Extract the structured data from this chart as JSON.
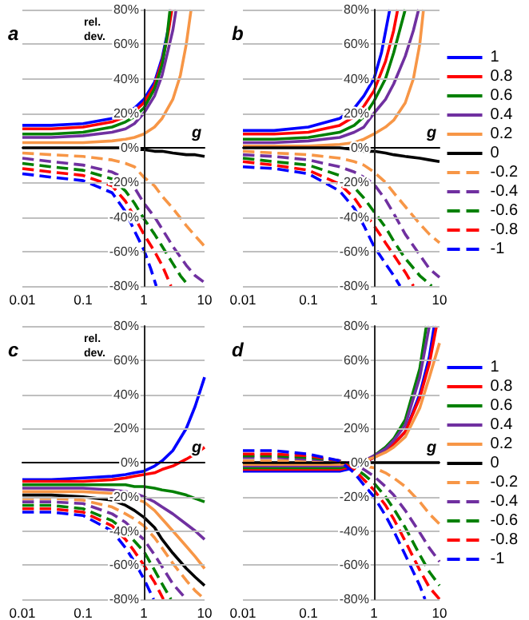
{
  "chart_data": [
    {
      "type": "line",
      "title": "a",
      "xlabel": "g",
      "ylabel": "rel.\ndev.",
      "xlim": [
        0.01,
        10
      ],
      "xticks": [
        0.01,
        0.1,
        1,
        10
      ],
      "ylim": [
        -80,
        80
      ],
      "yticks": [
        {
          "value": -80,
          "label": "-80%"
        },
        {
          "value": -60,
          "label": "-60%"
        },
        {
          "value": -40,
          "label": "-40%"
        },
        {
          "value": -20,
          "label": "-20%"
        },
        {
          "value": 0,
          "label": "0%"
        },
        {
          "value": 20,
          "label": "20%"
        },
        {
          "value": 40,
          "label": "40%"
        },
        {
          "value": 60,
          "label": "60%"
        },
        {
          "value": 80,
          "label": "80%"
        }
      ],
      "log": "x",
      "grid": "y",
      "legend": false,
      "marker": "none",
      "x": [
        0.01,
        0.03,
        0.1,
        0.3,
        0.5,
        0.7,
        1,
        1.5,
        2,
        3,
        5,
        7,
        10
      ],
      "series": [
        {
          "color": "#0000ff",
          "line_style": "solid",
          "x": [
            0.01,
            0.03,
            0.1,
            0.3,
            0.5,
            0.7,
            1,
            1.5,
            2,
            2.5,
            2.8
          ],
          "values": [
            13,
            13,
            14,
            17,
            20,
            23,
            28,
            38,
            52,
            68,
            80
          ]
        },
        {
          "color": "#ff0000",
          "line_style": "solid",
          "x": [
            0.01,
            0.03,
            0.1,
            0.3,
            0.5,
            0.7,
            1,
            1.5,
            2,
            2.5,
            2.9
          ],
          "values": [
            11,
            11,
            12,
            15,
            18,
            21,
            26,
            36,
            50,
            66,
            80
          ]
        },
        {
          "color": "#008000",
          "line_style": "solid",
          "x": [
            0.01,
            0.03,
            0.1,
            0.3,
            0.5,
            0.7,
            1,
            1.5,
            2,
            2.4,
            2.7
          ],
          "values": [
            8,
            8,
            9,
            12,
            15,
            18,
            23,
            34,
            48,
            64,
            80
          ]
        },
        {
          "color": "#7030a0",
          "line_style": "solid",
          "x": [
            0.01,
            0.03,
            0.1,
            0.3,
            0.5,
            0.7,
            1,
            1.5,
            2,
            3,
            3.4
          ],
          "values": [
            6,
            6,
            7,
            9,
            11,
            14,
            20,
            30,
            42,
            68,
            80
          ]
        },
        {
          "color": "#f79646",
          "line_style": "solid",
          "x": [
            0.01,
            0.03,
            0.1,
            0.3,
            0.5,
            0.7,
            1,
            1.5,
            2,
            3,
            4,
            5,
            6
          ],
          "values": [
            3,
            3,
            3,
            4,
            5,
            6,
            8,
            12,
            17,
            28,
            42,
            60,
            80
          ]
        },
        {
          "color": "#000000",
          "line_style": "solid",
          "values": [
            0,
            0,
            0,
            0,
            0,
            -1,
            -1,
            -2,
            -2,
            -3,
            -4,
            -4,
            -5
          ]
        },
        {
          "color": "#f79646",
          "line_style": "dashed",
          "values": [
            -3,
            -4,
            -5,
            -7,
            -9,
            -11,
            -17,
            -22,
            -28,
            -35,
            -45,
            -51,
            -57
          ]
        },
        {
          "color": "#7030a0",
          "line_style": "dashed",
          "values": [
            -6,
            -8,
            -10,
            -14,
            -18,
            -23,
            -32,
            -40,
            -47,
            -57,
            -68,
            -74,
            -78
          ]
        },
        {
          "color": "#008000",
          "line_style": "dashed",
          "x": [
            0.01,
            0.03,
            0.1,
            0.3,
            0.5,
            0.7,
            1,
            1.5,
            2,
            3,
            4,
            5.5
          ],
          "values": [
            -9,
            -11,
            -13,
            -18,
            -25,
            -32,
            -41,
            -50,
            -57,
            -67,
            -74,
            -80
          ]
        },
        {
          "color": "#ff0000",
          "line_style": "dashed",
          "x": [
            0.01,
            0.03,
            0.1,
            0.3,
            0.5,
            0.7,
            1,
            1.5,
            2,
            2.8
          ],
          "values": [
            -12,
            -14,
            -16,
            -22,
            -31,
            -40,
            -50,
            -60,
            -68,
            -80
          ]
        },
        {
          "color": "#0000ff",
          "line_style": "dashed",
          "x": [
            0.01,
            0.03,
            0.1,
            0.3,
            0.5,
            0.7,
            1,
            1.3,
            1.6
          ],
          "values": [
            -15,
            -17,
            -19,
            -26,
            -37,
            -48,
            -59,
            -70,
            -80
          ]
        }
      ]
    },
    {
      "type": "line",
      "title": "b",
      "xlabel": "g",
      "xlim": [
        0.01,
        10
      ],
      "xticks": [
        0.01,
        0.1,
        1,
        10
      ],
      "ylim": [
        -80,
        80
      ],
      "yticks": [
        {
          "value": -80,
          "label": "-80%"
        },
        {
          "value": -60,
          "label": "-60%"
        },
        {
          "value": -40,
          "label": "-40%"
        },
        {
          "value": -20,
          "label": "-20%"
        },
        {
          "value": 0,
          "label": "0%"
        },
        {
          "value": 20,
          "label": "20%"
        },
        {
          "value": 40,
          "label": "40%"
        },
        {
          "value": 60,
          "label": "60%"
        },
        {
          "value": 80,
          "label": "80%"
        }
      ],
      "log": "x",
      "grid": "y",
      "legend": "right",
      "marker": "none",
      "x": [
        0.01,
        0.03,
        0.1,
        0.3,
        0.5,
        0.7,
        1,
        1.5,
        2,
        3,
        5,
        7,
        10
      ],
      "series": [
        {
          "name": "1",
          "color": "#0000ff",
          "line_style": "solid",
          "x": [
            0.01,
            0.03,
            0.1,
            0.3,
            0.5,
            0.7,
            1,
            1.3,
            1.74
          ],
          "values": [
            10,
            10,
            12,
            17,
            23,
            30,
            40,
            55,
            80
          ]
        },
        {
          "name": "0.8",
          "color": "#ff0000",
          "line_style": "solid",
          "x": [
            0.01,
            0.03,
            0.1,
            0.3,
            0.5,
            0.7,
            1,
            1.5,
            2,
            2.3
          ],
          "values": [
            8,
            8,
            9,
            13,
            18,
            24,
            33,
            50,
            68,
            80
          ]
        },
        {
          "name": "0.6",
          "color": "#008000",
          "line_style": "solid",
          "x": [
            0.01,
            0.03,
            0.1,
            0.3,
            0.5,
            0.7,
            1,
            1.5,
            2,
            3
          ],
          "values": [
            5,
            5,
            6,
            9,
            13,
            18,
            27,
            40,
            55,
            80
          ]
        },
        {
          "name": "0.4",
          "color": "#7030a0",
          "line_style": "solid",
          "x": [
            0.01,
            0.03,
            0.1,
            0.3,
            0.5,
            0.7,
            1,
            1.5,
            2,
            3,
            4,
            4.8
          ],
          "values": [
            3,
            3,
            4,
            6,
            9,
            12,
            20,
            28,
            37,
            53,
            68,
            80
          ]
        },
        {
          "name": "0.2",
          "color": "#f79646",
          "line_style": "solid",
          "x": [
            0.01,
            0.03,
            0.1,
            0.3,
            0.5,
            0.7,
            1,
            1.5,
            2,
            3,
            4,
            5,
            5.7
          ],
          "values": [
            1,
            1,
            1,
            2,
            3,
            5,
            8,
            12,
            16,
            26,
            40,
            60,
            80
          ]
        },
        {
          "name": "0",
          "color": "#000000",
          "line_style": "solid",
          "values": [
            0,
            0,
            0,
            0,
            -1,
            -2,
            -2,
            -3,
            -4,
            -5,
            -6,
            -7,
            -8
          ]
        },
        {
          "name": "-0.2",
          "color": "#f79646",
          "line_style": "dashed",
          "values": [
            -2,
            -3,
            -4,
            -6,
            -8,
            -10,
            -14,
            -20,
            -26,
            -34,
            -44,
            -50,
            -55
          ]
        },
        {
          "name": "-0.4",
          "color": "#7030a0",
          "line_style": "dashed",
          "values": [
            -4,
            -5,
            -7,
            -11,
            -14,
            -17,
            -21,
            -30,
            -38,
            -50,
            -62,
            -70,
            -75
          ]
        },
        {
          "name": "-0.6",
          "color": "#008000",
          "line_style": "dashed",
          "x": [
            0.01,
            0.03,
            0.1,
            0.3,
            0.5,
            0.7,
            1,
            1.5,
            2,
            3,
            5,
            7.6
          ],
          "values": [
            -6,
            -8,
            -10,
            -16,
            -23,
            -29,
            -37,
            -46,
            -54,
            -64,
            -74,
            -80
          ]
        },
        {
          "name": "-0.8",
          "color": "#ff0000",
          "line_style": "dashed",
          "x": [
            0.01,
            0.03,
            0.1,
            0.3,
            0.5,
            0.7,
            1,
            1.5,
            2,
            3,
            4
          ],
          "values": [
            -8,
            -10,
            -13,
            -21,
            -29,
            -37,
            -45,
            -55,
            -62,
            -72,
            -80
          ]
        },
        {
          "name": "-1",
          "color": "#0000ff",
          "line_style": "dashed",
          "x": [
            0.01,
            0.03,
            0.1,
            0.3,
            0.5,
            0.7,
            1,
            1.5,
            2,
            2.5
          ],
          "values": [
            -11,
            -12,
            -15,
            -25,
            -35,
            -45,
            -57,
            -67,
            -74,
            -80
          ]
        }
      ]
    },
    {
      "type": "line",
      "title": "c",
      "xlabel": "g",
      "ylabel": "rel.\ndev.",
      "xlim": [
        0.01,
        10
      ],
      "xticks": [
        0.01,
        0.1,
        1,
        10
      ],
      "ylim": [
        -80,
        80
      ],
      "yticks": [
        {
          "value": -80,
          "label": "-80%"
        },
        {
          "value": -60,
          "label": "-60%"
        },
        {
          "value": -40,
          "label": "-40%"
        },
        {
          "value": -20,
          "label": "-20%"
        },
        {
          "value": 0,
          "label": "0%"
        },
        {
          "value": 20,
          "label": "20%"
        },
        {
          "value": 40,
          "label": "40%"
        },
        {
          "value": 60,
          "label": "60%"
        },
        {
          "value": 80,
          "label": "80%"
        }
      ],
      "log": "x",
      "grid": "y",
      "legend": false,
      "marker": "none",
      "x": [
        0.01,
        0.03,
        0.1,
        0.3,
        0.5,
        0.7,
        1,
        1.5,
        2,
        3,
        5,
        7,
        10
      ],
      "series": [
        {
          "color": "#0000ff",
          "line_style": "solid",
          "values": [
            -10,
            -10,
            -9,
            -8,
            -7,
            -6,
            -5,
            -2,
            1,
            7,
            20,
            33,
            50
          ]
        },
        {
          "color": "#ff0000",
          "line_style": "solid",
          "values": [
            -11,
            -11,
            -11,
            -10,
            -9,
            -8,
            -7,
            -6,
            -4,
            -2,
            2,
            5,
            9
          ]
        },
        {
          "color": "#008000",
          "line_style": "solid",
          "values": [
            -13,
            -13,
            -13,
            -13,
            -13,
            -14,
            -14,
            -15,
            -16,
            -17,
            -19,
            -21,
            -23
          ]
        },
        {
          "color": "#7030a0",
          "line_style": "solid",
          "values": [
            -15,
            -15,
            -15,
            -16,
            -17,
            -18,
            -20,
            -23,
            -26,
            -30,
            -36,
            -40,
            -45
          ]
        },
        {
          "color": "#f79646",
          "line_style": "solid",
          "values": [
            -17,
            -17,
            -17,
            -18,
            -19,
            -21,
            -23,
            -28,
            -33,
            -40,
            -49,
            -55,
            -62
          ]
        },
        {
          "color": "#000000",
          "line_style": "solid",
          "values": [
            -19,
            -19,
            -20,
            -22,
            -25,
            -28,
            -32,
            -38,
            -45,
            -53,
            -62,
            -67,
            -72
          ]
        },
        {
          "color": "#f79646",
          "line_style": "dashed",
          "values": [
            -21,
            -21,
            -22,
            -26,
            -30,
            -33,
            -37,
            -44,
            -50,
            -59,
            -69,
            -75,
            -80
          ]
        },
        {
          "color": "#7030a0",
          "line_style": "dashed",
          "x": [
            0.01,
            0.03,
            0.1,
            0.3,
            0.5,
            0.7,
            1,
            1.5,
            2,
            3,
            5
          ],
          "values": [
            -23,
            -23,
            -24,
            -30,
            -35,
            -40,
            -45,
            -54,
            -61,
            -71,
            -80
          ]
        },
        {
          "color": "#008000",
          "line_style": "dashed",
          "x": [
            0.01,
            0.03,
            0.1,
            0.3,
            0.5,
            0.7,
            1,
            1.5,
            2,
            2.8
          ],
          "values": [
            -25,
            -25,
            -27,
            -34,
            -40,
            -46,
            -52,
            -63,
            -71,
            -80
          ]
        },
        {
          "color": "#ff0000",
          "line_style": "dashed",
          "x": [
            0.01,
            0.03,
            0.1,
            0.3,
            0.5,
            0.7,
            1,
            1.5,
            2.1
          ],
          "values": [
            -27,
            -27,
            -29,
            -37,
            -45,
            -52,
            -60,
            -70,
            -80
          ]
        },
        {
          "color": "#0000ff",
          "line_style": "dashed",
          "x": [
            0.01,
            0.03,
            0.1,
            0.3,
            0.5,
            0.7,
            1,
            1.45
          ],
          "values": [
            -29,
            -29,
            -31,
            -40,
            -50,
            -58,
            -68,
            -80
          ]
        }
      ]
    },
    {
      "type": "line",
      "title": "d",
      "xlabel": "g",
      "xlim": [
        0.01,
        10
      ],
      "xticks": [
        0.01,
        0.1,
        1,
        10
      ],
      "ylim": [
        -80,
        80
      ],
      "yticks": [
        {
          "value": -80,
          "label": "-80%"
        },
        {
          "value": -60,
          "label": "-60%"
        },
        {
          "value": -40,
          "label": "-40%"
        },
        {
          "value": -20,
          "label": "-20%"
        },
        {
          "value": 0,
          "label": "0%"
        },
        {
          "value": 20,
          "label": "20%"
        },
        {
          "value": 40,
          "label": "40%"
        },
        {
          "value": 60,
          "label": "60%"
        },
        {
          "value": 80,
          "label": "80%"
        }
      ],
      "log": "x",
      "grid": "y",
      "legend": "right",
      "marker": "none",
      "x": [
        0.01,
        0.03,
        0.1,
        0.3,
        0.5,
        0.7,
        1,
        1.5,
        2,
        3,
        5,
        7,
        10
      ],
      "series": [
        {
          "name": "1",
          "color": "#0000ff",
          "line_style": "solid",
          "x": [
            0.01,
            0.03,
            0.1,
            0.3,
            0.5,
            0.7,
            1,
            1.5,
            2,
            3,
            5,
            7,
            8.3
          ],
          "values": [
            -5,
            -5,
            -5,
            -5,
            -3,
            0,
            3,
            7,
            11,
            18,
            40,
            62,
            80
          ]
        },
        {
          "name": "0.8",
          "color": "#ff0000",
          "line_style": "solid",
          "x": [
            0.01,
            0.03,
            0.1,
            0.3,
            0.5,
            0.7,
            1,
            1.5,
            2,
            3,
            5,
            7,
            9
          ],
          "values": [
            -4,
            -4,
            -4,
            -4,
            -2,
            0,
            3,
            7,
            11,
            18,
            38,
            58,
            80
          ]
        },
        {
          "name": "0.6",
          "color": "#008000",
          "line_style": "solid",
          "x": [
            0.01,
            0.03,
            0.1,
            0.3,
            0.5,
            0.7,
            1,
            1.5,
            2,
            3,
            5,
            6.3
          ],
          "values": [
            -3,
            -3,
            -3,
            -3,
            -1,
            0,
            4,
            9,
            14,
            25,
            55,
            80
          ]
        },
        {
          "name": "0.4",
          "color": "#7030a0",
          "line_style": "solid",
          "x": [
            0.01,
            0.03,
            0.1,
            0.3,
            0.5,
            0.7,
            1,
            1.5,
            2,
            3,
            5,
            7
          ],
          "values": [
            -2,
            -2,
            -2,
            -2,
            -1,
            1,
            4,
            8,
            13,
            22,
            50,
            80
          ]
        },
        {
          "name": "0.2",
          "color": "#f79646",
          "line_style": "solid",
          "values": [
            -1,
            -1,
            -1,
            -1,
            0,
            1,
            3,
            6,
            9,
            15,
            32,
            50,
            70
          ]
        },
        {
          "name": "0",
          "color": "#000000",
          "line_style": "solid",
          "values": [
            0,
            0,
            0,
            0,
            0,
            0,
            0,
            0,
            0,
            0,
            0,
            0,
            0
          ]
        },
        {
          "name": "-0.2",
          "color": "#f79646",
          "line_style": "dashed",
          "values": [
            1,
            1,
            1,
            0,
            -1,
            -2,
            -3,
            -6,
            -9,
            -14,
            -23,
            -30,
            -36
          ]
        },
        {
          "name": "-0.4",
          "color": "#7030a0",
          "line_style": "dashed",
          "values": [
            3,
            3,
            2,
            1,
            -1,
            -4,
            -8,
            -14,
            -19,
            -28,
            -41,
            -50,
            -58
          ]
        },
        {
          "name": "-0.6",
          "color": "#008000",
          "line_style": "dashed",
          "values": [
            4,
            4,
            3,
            1,
            -3,
            -7,
            -12,
            -20,
            -27,
            -38,
            -54,
            -64,
            -72
          ]
        },
        {
          "name": "-0.8",
          "color": "#ff0000",
          "line_style": "dashed",
          "values": [
            5,
            5,
            4,
            1,
            -4,
            -10,
            -16,
            -25,
            -33,
            -46,
            -63,
            -73,
            -80
          ]
        },
        {
          "name": "-1",
          "color": "#0000ff",
          "line_style": "dashed",
          "x": [
            0.01,
            0.03,
            0.1,
            0.3,
            0.5,
            0.7,
            1,
            1.5,
            2,
            3,
            5,
            6
          ],
          "values": [
            7,
            7,
            5,
            1,
            -6,
            -13,
            -20,
            -31,
            -40,
            -54,
            -72,
            -80
          ]
        }
      ]
    }
  ]
}
